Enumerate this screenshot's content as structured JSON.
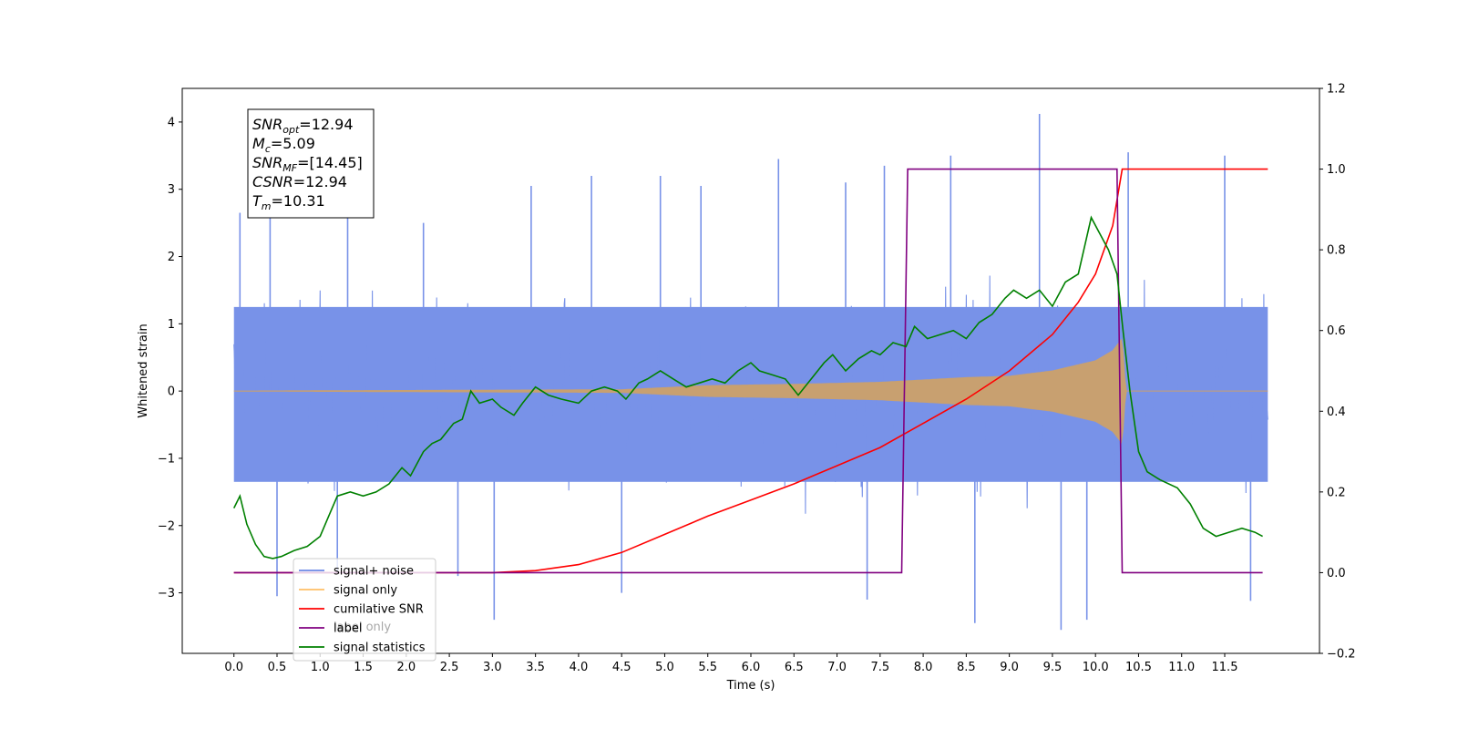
{
  "chart_data": {
    "type": "line",
    "xlabel": "Time (s)",
    "ylabel": "Whitened strain",
    "xlim": [
      -0.6,
      12.6
    ],
    "ylim": [
      -3.9,
      4.5
    ],
    "y2lim": [
      -0.2,
      1.2
    ],
    "x_ticks": [
      "0.0",
      "0.5",
      "1.0",
      "1.5",
      "2.0",
      "2.5",
      "3.0",
      "3.5",
      "4.0",
      "4.5",
      "5.0",
      "5.5",
      "6.0",
      "6.5",
      "7.0",
      "7.5",
      "8.0",
      "8.5",
      "9.0",
      "9.5",
      "10.0",
      "10.5",
      "11.0",
      "11.5"
    ],
    "y_ticks": [
      "−3",
      "−2",
      "−1",
      "0",
      "1",
      "2",
      "3",
      "4"
    ],
    "y2_ticks": [
      "−0.2",
      "0.0",
      "0.2",
      "0.4",
      "0.6",
      "0.8",
      "1.0",
      "1.2"
    ],
    "annotation": {
      "lines": [
        {
          "sym": "SNR",
          "sub": "opt",
          "val": "=12.94"
        },
        {
          "sym": "M",
          "sub": "c",
          "val": "=5.09"
        },
        {
          "sym": "SNR",
          "sub": "MF",
          "val": "=[14.45]"
        },
        {
          "sym": "CSNR",
          "sub": "",
          "val": "=12.94"
        },
        {
          "sym": "T",
          "sub": "m",
          "val": "=10.31"
        }
      ]
    },
    "legend": {
      "placement": "lower-left",
      "entries": [
        {
          "label": "signal+ noise",
          "color": "#6b88e6"
        },
        {
          "label": "signal only",
          "color": "#ffbf66"
        },
        {
          "label": "cumilative SNR",
          "color": "#ff0000"
        },
        {
          "label": "label",
          "color": "#800080"
        },
        {
          "label": "signal statistics",
          "color": "#008000"
        }
      ],
      "hidden_text": "label only"
    },
    "series": [
      {
        "name": "signal+ noise",
        "color": "#7892e8",
        "axis": "left",
        "description": "noise band",
        "x_range": [
          0.0,
          12.0
        ],
        "band_center": -0.05,
        "band_halfwidth": 1.3,
        "spikes": [
          {
            "x": 0.07,
            "y": 2.65
          },
          {
            "x": 0.42,
            "y": 2.75
          },
          {
            "x": 1.32,
            "y": 2.6
          },
          {
            "x": 2.2,
            "y": 2.5
          },
          {
            "x": 3.45,
            "y": 3.05
          },
          {
            "x": 4.15,
            "y": 3.2
          },
          {
            "x": 4.95,
            "y": 3.2
          },
          {
            "x": 5.42,
            "y": 3.05
          },
          {
            "x": 6.32,
            "y": 3.45
          },
          {
            "x": 7.1,
            "y": 3.1
          },
          {
            "x": 7.55,
            "y": 3.35
          },
          {
            "x": 8.32,
            "y": 3.5
          },
          {
            "x": 9.35,
            "y": 4.12
          },
          {
            "x": 10.38,
            "y": 3.55
          },
          {
            "x": 11.5,
            "y": 3.5
          },
          {
            "x": 0.5,
            "y": -3.05
          },
          {
            "x": 1.2,
            "y": -2.7
          },
          {
            "x": 2.6,
            "y": -2.75
          },
          {
            "x": 3.02,
            "y": -3.4
          },
          {
            "x": 4.5,
            "y": -3.0
          },
          {
            "x": 7.35,
            "y": -3.1
          },
          {
            "x": 8.6,
            "y": -3.45
          },
          {
            "x": 9.6,
            "y": -3.55
          },
          {
            "x": 9.9,
            "y": -3.4
          },
          {
            "x": 11.8,
            "y": -3.12
          }
        ]
      },
      {
        "name": "signal only",
        "color": "#c8a070",
        "axis": "left",
        "chirp": {
          "start_x": 0.0,
          "merge_x": 10.31,
          "end_x": 12.0,
          "envelope": [
            [
              0.0,
              0.0
            ],
            [
              4.5,
              0.02
            ],
            [
              5.5,
              0.08
            ],
            [
              6.5,
              0.1
            ],
            [
              7.5,
              0.13
            ],
            [
              8.5,
              0.2
            ],
            [
              9.0,
              0.22
            ],
            [
              9.5,
              0.3
            ],
            [
              10.0,
              0.45
            ],
            [
              10.2,
              0.6
            ],
            [
              10.31,
              0.78
            ],
            [
              10.35,
              0.0
            ],
            [
              12.0,
              0.0
            ]
          ]
        }
      },
      {
        "name": "cumilative SNR",
        "color": "#ff0000",
        "axis": "right",
        "x": [
          0.0,
          3.0,
          3.5,
          4.0,
          4.5,
          5.0,
          5.5,
          6.0,
          6.5,
          7.0,
          7.5,
          8.0,
          8.5,
          9.0,
          9.5,
          9.8,
          10.0,
          10.2,
          10.31,
          12.0
        ],
        "y": [
          0.0,
          0.0,
          0.005,
          0.02,
          0.05,
          0.095,
          0.14,
          0.18,
          0.22,
          0.265,
          0.31,
          0.37,
          0.43,
          0.5,
          0.59,
          0.67,
          0.74,
          0.86,
          1.0,
          1.0
        ]
      },
      {
        "name": "label",
        "color": "#800080",
        "axis": "right",
        "x": [
          0.0,
          7.75,
          7.82,
          10.25,
          10.31,
          11.94
        ],
        "y": [
          0.0,
          0.0,
          1.0,
          1.0,
          0.0,
          0.0
        ]
      },
      {
        "name": "signal statistics",
        "color": "#008000",
        "axis": "right",
        "x": [
          0.0,
          0.07,
          0.15,
          0.25,
          0.35,
          0.45,
          0.55,
          0.7,
          0.85,
          1.0,
          1.1,
          1.2,
          1.35,
          1.5,
          1.65,
          1.8,
          1.95,
          2.05,
          2.2,
          2.3,
          2.4,
          2.55,
          2.65,
          2.75,
          2.85,
          3.0,
          3.1,
          3.25,
          3.35,
          3.5,
          3.65,
          3.8,
          4.0,
          4.15,
          4.3,
          4.45,
          4.55,
          4.7,
          4.8,
          4.95,
          5.1,
          5.25,
          5.4,
          5.55,
          5.7,
          5.85,
          6.0,
          6.1,
          6.25,
          6.4,
          6.55,
          6.7,
          6.85,
          6.95,
          7.1,
          7.25,
          7.4,
          7.5,
          7.65,
          7.8,
          7.9,
          8.05,
          8.2,
          8.35,
          8.5,
          8.65,
          8.8,
          8.95,
          9.05,
          9.2,
          9.35,
          9.5,
          9.65,
          9.8,
          9.95,
          10.05,
          10.15,
          10.25,
          10.32,
          10.4,
          10.5,
          10.6,
          10.75,
          10.95,
          11.1,
          11.25,
          11.4,
          11.55,
          11.7,
          11.85,
          11.94
        ],
        "y": [
          0.16,
          0.19,
          0.12,
          0.07,
          0.04,
          0.035,
          0.04,
          0.055,
          0.065,
          0.09,
          0.14,
          0.19,
          0.2,
          0.19,
          0.2,
          0.22,
          0.26,
          0.24,
          0.3,
          0.32,
          0.33,
          0.37,
          0.38,
          0.45,
          0.42,
          0.43,
          0.41,
          0.39,
          0.42,
          0.46,
          0.44,
          0.43,
          0.42,
          0.45,
          0.46,
          0.45,
          0.43,
          0.47,
          0.48,
          0.5,
          0.48,
          0.46,
          0.47,
          0.48,
          0.47,
          0.5,
          0.52,
          0.5,
          0.49,
          0.48,
          0.44,
          0.48,
          0.52,
          0.54,
          0.5,
          0.53,
          0.55,
          0.54,
          0.57,
          0.56,
          0.61,
          0.58,
          0.59,
          0.6,
          0.58,
          0.62,
          0.64,
          0.68,
          0.7,
          0.68,
          0.7,
          0.66,
          0.72,
          0.74,
          0.88,
          0.84,
          0.8,
          0.74,
          0.6,
          0.45,
          0.3,
          0.25,
          0.23,
          0.21,
          0.17,
          0.11,
          0.09,
          0.1,
          0.11,
          0.1,
          0.09
        ]
      }
    ]
  }
}
